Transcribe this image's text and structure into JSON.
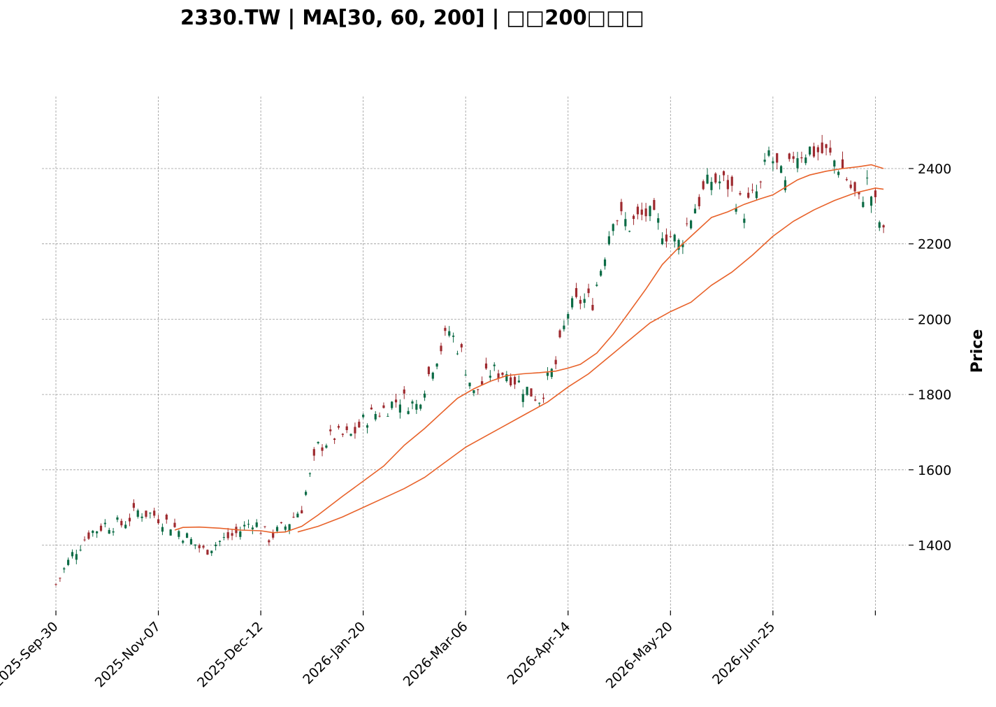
{
  "chart_data": {
    "type": "candlestick",
    "title": "2330.TW  |  MA[30, 60, 200]  |  □□200□□□",
    "ylabel": "Price",
    "xlabel": "",
    "ylim": [
      1240,
      2590
    ],
    "y_ticks": [
      1400,
      1600,
      1800,
      2000,
      2200,
      2400
    ],
    "x_ticks": [
      {
        "index": 0,
        "label": "2025-Sep-30"
      },
      {
        "index": 25,
        "label": "2025-Nov-07"
      },
      {
        "index": 50,
        "label": "2025-Dec-12"
      },
      {
        "index": 75,
        "label": "2026-Jan-20"
      },
      {
        "index": 100,
        "label": "2026-Mar-06"
      },
      {
        "index": 125,
        "label": "2026-Apr-14"
      },
      {
        "index": 150,
        "label": "2026-May-20"
      },
      {
        "index": 175,
        "label": "2026-Jun-25"
      },
      {
        "index": 200,
        "label": ""
      }
    ],
    "y_axis_side": "right",
    "grid": true,
    "colors": {
      "up": "#0b6b45",
      "down": "#9e2a2f",
      "ma": "#e8622a",
      "grid": "#9a9a9a"
    },
    "anchors": [
      [
        0,
        1295
      ],
      [
        4,
        1375
      ],
      [
        8,
        1430
      ],
      [
        12,
        1455
      ],
      [
        16,
        1455
      ],
      [
        20,
        1490
      ],
      [
        24,
        1480
      ],
      [
        28,
        1455
      ],
      [
        32,
        1420
      ],
      [
        36,
        1385
      ],
      [
        40,
        1410
      ],
      [
        44,
        1430
      ],
      [
        48,
        1465
      ],
      [
        52,
        1420
      ],
      [
        56,
        1450
      ],
      [
        60,
        1500
      ],
      [
        64,
        1660
      ],
      [
        68,
        1690
      ],
      [
        72,
        1690
      ],
      [
        76,
        1740
      ],
      [
        80,
        1760
      ],
      [
        84,
        1790
      ],
      [
        88,
        1770
      ],
      [
        92,
        1880
      ],
      [
        96,
        1970
      ],
      [
        99,
        1910
      ],
      [
        102,
        1800
      ],
      [
        106,
        1860
      ],
      [
        110,
        1860
      ],
      [
        114,
        1820
      ],
      [
        118,
        1790
      ],
      [
        122,
        1880
      ],
      [
        125,
        2020
      ],
      [
        128,
        2050
      ],
      [
        131,
        2050
      ],
      [
        134,
        2180
      ],
      [
        136,
        2280
      ],
      [
        140,
        2250
      ],
      [
        144,
        2280
      ],
      [
        148,
        2240
      ],
      [
        152,
        2200
      ],
      [
        156,
        2300
      ],
      [
        160,
        2370
      ],
      [
        164,
        2360
      ],
      [
        168,
        2290
      ],
      [
        172,
        2350
      ],
      [
        174,
        2440
      ],
      [
        176,
        2400
      ],
      [
        178,
        2350
      ],
      [
        180,
        2440
      ],
      [
        184,
        2450
      ],
      [
        188,
        2440
      ],
      [
        192,
        2400
      ],
      [
        194,
        2350
      ],
      [
        196,
        2310
      ],
      [
        198,
        2360
      ],
      [
        200,
        2300
      ],
      [
        201,
        2260
      ],
      [
        202,
        2220
      ]
    ],
    "moving_averages": [
      {
        "period": 30,
        "points": [
          [
            29,
            1440
          ],
          [
            31,
            1447
          ],
          [
            35,
            1448
          ],
          [
            40,
            1445
          ],
          [
            45,
            1440
          ],
          [
            50,
            1438
          ],
          [
            53,
            1433
          ],
          [
            56,
            1435
          ],
          [
            60,
            1450
          ],
          [
            64,
            1480
          ],
          [
            70,
            1530
          ],
          [
            75,
            1570
          ],
          [
            80,
            1610
          ],
          [
            85,
            1665
          ],
          [
            90,
            1710
          ],
          [
            95,
            1760
          ],
          [
            98,
            1790
          ],
          [
            102,
            1815
          ],
          [
            106,
            1835
          ],
          [
            110,
            1850
          ],
          [
            114,
            1855
          ],
          [
            118,
            1858
          ],
          [
            122,
            1862
          ],
          [
            125,
            1870
          ],
          [
            128,
            1880
          ],
          [
            132,
            1910
          ],
          [
            136,
            1960
          ],
          [
            140,
            2020
          ],
          [
            144,
            2080
          ],
          [
            148,
            2145
          ],
          [
            152,
            2190
          ],
          [
            156,
            2230
          ],
          [
            160,
            2270
          ],
          [
            164,
            2285
          ],
          [
            168,
            2305
          ],
          [
            172,
            2320
          ],
          [
            175,
            2330
          ],
          [
            178,
            2350
          ],
          [
            181,
            2370
          ],
          [
            184,
            2383
          ],
          [
            188,
            2393
          ],
          [
            192,
            2400
          ],
          [
            196,
            2405
          ],
          [
            199,
            2410
          ],
          [
            202,
            2400
          ]
        ]
      },
      {
        "period": 60,
        "points": [
          [
            59,
            1435
          ],
          [
            64,
            1450
          ],
          [
            70,
            1475
          ],
          [
            75,
            1500
          ],
          [
            80,
            1525
          ],
          [
            85,
            1550
          ],
          [
            90,
            1580
          ],
          [
            95,
            1620
          ],
          [
            100,
            1660
          ],
          [
            105,
            1690
          ],
          [
            110,
            1720
          ],
          [
            115,
            1750
          ],
          [
            120,
            1780
          ],
          [
            125,
            1820
          ],
          [
            130,
            1855
          ],
          [
            135,
            1900
          ],
          [
            140,
            1945
          ],
          [
            145,
            1990
          ],
          [
            150,
            2020
          ],
          [
            155,
            2045
          ],
          [
            160,
            2090
          ],
          [
            165,
            2125
          ],
          [
            170,
            2170
          ],
          [
            175,
            2220
          ],
          [
            180,
            2260
          ],
          [
            185,
            2290
          ],
          [
            190,
            2315
          ],
          [
            195,
            2335
          ],
          [
            200,
            2348
          ],
          [
            202,
            2345
          ]
        ]
      }
    ]
  }
}
